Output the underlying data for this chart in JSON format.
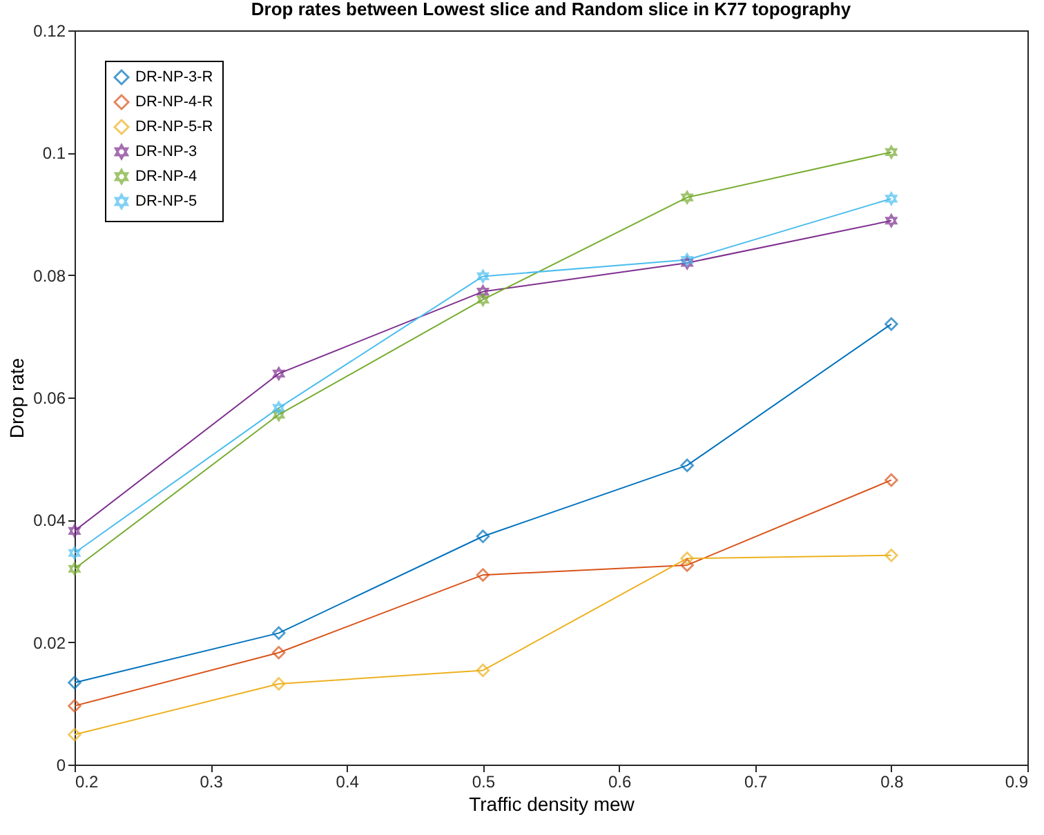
{
  "chart_data": {
    "type": "line",
    "title": "Drop rates between Lowest slice and Random slice in K77 topography",
    "xlabel": "Traffic density mew",
    "ylabel": "Drop rate",
    "x": [
      0.2,
      0.35,
      0.5,
      0.65,
      0.8
    ],
    "series": [
      {
        "name": "DR-NP-3-R",
        "color": "#0072bd",
        "marker": "diamond",
        "values": [
          0.0134,
          0.0215,
          0.0373,
          0.0489,
          0.072
        ]
      },
      {
        "name": "DR-NP-4-R",
        "color": "#d95319",
        "marker": "diamond",
        "values": [
          0.0096,
          0.0183,
          0.031,
          0.0326,
          0.0465
        ]
      },
      {
        "name": "DR-NP-5-R",
        "color": "#edb120",
        "marker": "diamond",
        "values": [
          0.0049,
          0.0132,
          0.0154,
          0.0337,
          0.0342
        ]
      },
      {
        "name": "DR-NP-3",
        "color": "#7e2f8e",
        "marker": "star",
        "values": [
          0.0382,
          0.0639,
          0.0773,
          0.082,
          0.0889
        ]
      },
      {
        "name": "DR-NP-4",
        "color": "#77ac30",
        "marker": "star",
        "values": [
          0.032,
          0.0572,
          0.076,
          0.0927,
          0.1001
        ]
      },
      {
        "name": "DR-NP-5",
        "color": "#4dbeee",
        "marker": "star",
        "values": [
          0.0346,
          0.0583,
          0.0798,
          0.0825,
          0.0925
        ]
      }
    ],
    "xlim": [
      0.2,
      0.9
    ],
    "xticks": [
      0.2,
      0.3,
      0.4,
      0.5,
      0.6,
      0.7,
      0.8,
      0.9
    ],
    "ylim": [
      0,
      0.12
    ],
    "yticks": [
      0,
      0.02,
      0.04,
      0.06,
      0.08,
      0.1,
      0.12
    ],
    "grid": false,
    "legend": "top left",
    "line_style": "solid"
  }
}
